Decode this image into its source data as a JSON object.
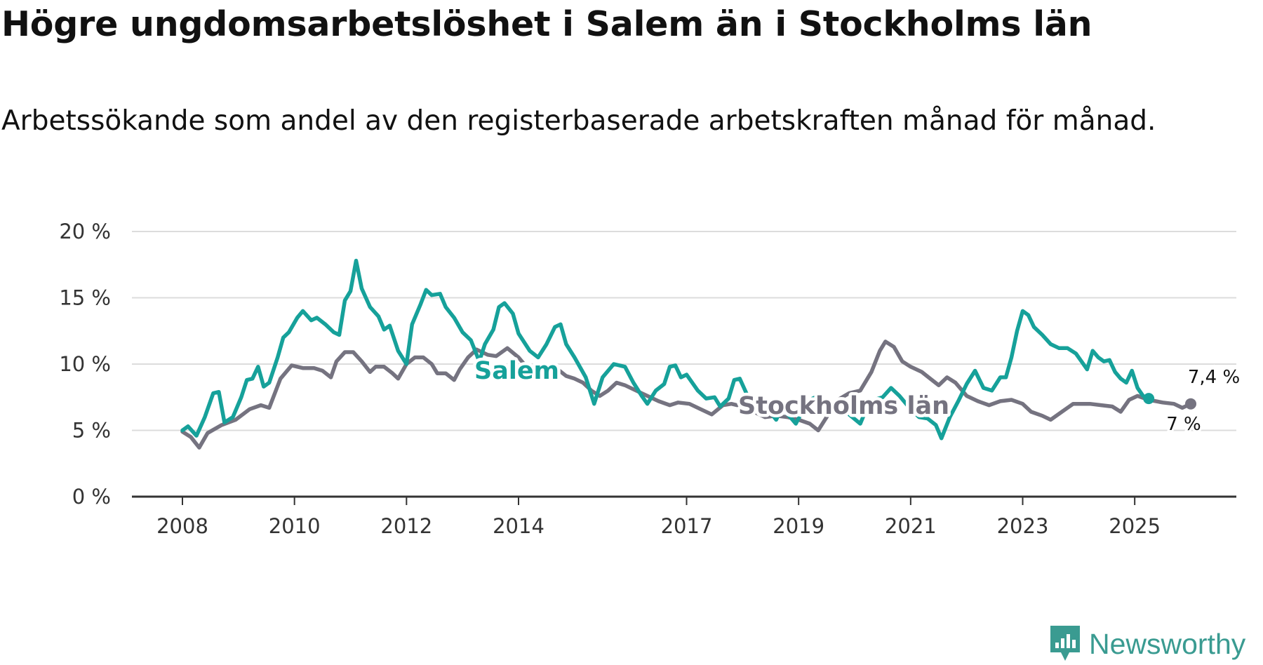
{
  "header": {
    "title": "Högre ungdomsarbetslöshet i Salem än i Stockholms län",
    "subtitle": "Arbetssökande som andel av den registerbaserade arbetskraften månad för månad."
  },
  "brand": {
    "name": "Newsworthy",
    "icon": "newsworthy-logo-icon",
    "color": "#3a9b91"
  },
  "chart_data": {
    "type": "line",
    "title": "Högre ungdomsarbetslöshet i Salem än i Stockholms län",
    "subtitle": "Arbetssökande som andel av den registerbaserade arbetskraften månad för månad.",
    "xlabel": "",
    "ylabel": "",
    "x_range": [
      2008.0,
      2026.0
    ],
    "ylim": [
      0,
      20
    ],
    "y_ticks": [
      {
        "value": 0,
        "label": "0 %"
      },
      {
        "value": 5,
        "label": "5 %"
      },
      {
        "value": 10,
        "label": "10 %"
      },
      {
        "value": 15,
        "label": "15 %"
      },
      {
        "value": 20,
        "label": "20 %"
      }
    ],
    "x_ticks": [
      {
        "value": 2008,
        "label": "2008"
      },
      {
        "value": 2010,
        "label": "2010"
      },
      {
        "value": 2012,
        "label": "2012"
      },
      {
        "value": 2014,
        "label": "2014"
      },
      {
        "value": 2017,
        "label": "2017"
      },
      {
        "value": 2019,
        "label": "2019"
      },
      {
        "value": 2021,
        "label": "2021"
      },
      {
        "value": 2023,
        "label": "2023"
      },
      {
        "value": 2025,
        "label": "2025"
      }
    ],
    "grid": true,
    "series": [
      {
        "name": "Stockholms län",
        "label": "Stockholms län",
        "color": "#757380",
        "end_label": "7 %",
        "points": [
          [
            2008.0,
            4.9
          ],
          [
            2008.15,
            4.5
          ],
          [
            2008.3,
            3.7
          ],
          [
            2008.45,
            4.8
          ],
          [
            2008.7,
            5.4
          ],
          [
            2008.95,
            5.8
          ],
          [
            2009.2,
            6.6
          ],
          [
            2009.4,
            6.9
          ],
          [
            2009.55,
            6.7
          ],
          [
            2009.75,
            8.9
          ],
          [
            2009.95,
            9.9
          ],
          [
            2010.15,
            9.7
          ],
          [
            2010.35,
            9.7
          ],
          [
            2010.5,
            9.5
          ],
          [
            2010.65,
            9.0
          ],
          [
            2010.75,
            10.2
          ],
          [
            2010.9,
            10.9
          ],
          [
            2011.05,
            10.9
          ],
          [
            2011.2,
            10.2
          ],
          [
            2011.35,
            9.4
          ],
          [
            2011.45,
            9.8
          ],
          [
            2011.6,
            9.8
          ],
          [
            2011.75,
            9.3
          ],
          [
            2011.85,
            8.9
          ],
          [
            2012.0,
            10.0
          ],
          [
            2012.15,
            10.5
          ],
          [
            2012.3,
            10.5
          ],
          [
            2012.45,
            10.0
          ],
          [
            2012.55,
            9.3
          ],
          [
            2012.7,
            9.3
          ],
          [
            2012.85,
            8.8
          ],
          [
            2012.95,
            9.6
          ],
          [
            2013.1,
            10.5
          ],
          [
            2013.25,
            11.1
          ],
          [
            2013.45,
            10.7
          ],
          [
            2013.6,
            10.6
          ],
          [
            2013.8,
            11.2
          ],
          [
            2014.0,
            10.5
          ],
          [
            2014.2,
            9.5
          ],
          [
            2014.5,
            9.0
          ],
          [
            2014.7,
            9.6
          ],
          [
            2014.85,
            9.1
          ],
          [
            2015.0,
            8.9
          ],
          [
            2015.15,
            8.6
          ],
          [
            2015.3,
            8.0
          ],
          [
            2015.45,
            7.6
          ],
          [
            2015.6,
            8.0
          ],
          [
            2015.75,
            8.6
          ],
          [
            2015.9,
            8.4
          ],
          [
            2016.1,
            8.0
          ],
          [
            2016.3,
            7.6
          ],
          [
            2016.5,
            7.2
          ],
          [
            2016.7,
            6.9
          ],
          [
            2016.85,
            7.1
          ],
          [
            2017.05,
            7.0
          ],
          [
            2017.25,
            6.6
          ],
          [
            2017.45,
            6.2
          ],
          [
            2017.65,
            6.9
          ],
          [
            2017.8,
            7.0
          ],
          [
            2018.0,
            6.8
          ],
          [
            2018.2,
            6.4
          ],
          [
            2018.4,
            6.0
          ],
          [
            2018.6,
            6.1
          ],
          [
            2018.8,
            6.0
          ],
          [
            2019.0,
            5.8
          ],
          [
            2019.2,
            5.5
          ],
          [
            2019.35,
            5.0
          ],
          [
            2019.5,
            6.0
          ],
          [
            2019.7,
            7.3
          ],
          [
            2019.9,
            7.8
          ],
          [
            2020.1,
            8.0
          ],
          [
            2020.3,
            9.4
          ],
          [
            2020.45,
            11.0
          ],
          [
            2020.55,
            11.7
          ],
          [
            2020.7,
            11.3
          ],
          [
            2020.85,
            10.2
          ],
          [
            2021.0,
            9.8
          ],
          [
            2021.2,
            9.4
          ],
          [
            2021.35,
            8.9
          ],
          [
            2021.5,
            8.4
          ],
          [
            2021.65,
            9.0
          ],
          [
            2021.8,
            8.6
          ],
          [
            2022.0,
            7.6
          ],
          [
            2022.2,
            7.2
          ],
          [
            2022.4,
            6.9
          ],
          [
            2022.6,
            7.2
          ],
          [
            2022.8,
            7.3
          ],
          [
            2023.0,
            7.0
          ],
          [
            2023.15,
            6.4
          ],
          [
            2023.35,
            6.1
          ],
          [
            2023.5,
            5.8
          ],
          [
            2023.7,
            6.4
          ],
          [
            2023.9,
            7.0
          ],
          [
            2024.2,
            7.0
          ],
          [
            2024.4,
            6.9
          ],
          [
            2024.6,
            6.8
          ],
          [
            2024.75,
            6.4
          ],
          [
            2024.9,
            7.3
          ],
          [
            2025.05,
            7.6
          ],
          [
            2025.25,
            7.3
          ],
          [
            2025.5,
            7.1
          ],
          [
            2025.7,
            7.0
          ],
          [
            2025.85,
            6.7
          ],
          [
            2026.0,
            7.0
          ]
        ]
      },
      {
        "name": "Salem",
        "label": "Salem",
        "color": "#16a19a",
        "end_label": "7,4 %",
        "points": [
          [
            2008.0,
            5.0
          ],
          [
            2008.1,
            5.3
          ],
          [
            2008.25,
            4.6
          ],
          [
            2008.4,
            6.0
          ],
          [
            2008.55,
            7.8
          ],
          [
            2008.65,
            7.9
          ],
          [
            2008.75,
            5.6
          ],
          [
            2008.9,
            6.0
          ],
          [
            2009.05,
            7.5
          ],
          [
            2009.15,
            8.8
          ],
          [
            2009.25,
            8.9
          ],
          [
            2009.35,
            9.8
          ],
          [
            2009.45,
            8.3
          ],
          [
            2009.55,
            8.6
          ],
          [
            2009.7,
            10.5
          ],
          [
            2009.8,
            12.0
          ],
          [
            2009.9,
            12.4
          ],
          [
            2010.05,
            13.5
          ],
          [
            2010.15,
            14.0
          ],
          [
            2010.3,
            13.3
          ],
          [
            2010.4,
            13.5
          ],
          [
            2010.55,
            13.0
          ],
          [
            2010.7,
            12.4
          ],
          [
            2010.8,
            12.2
          ],
          [
            2010.9,
            14.8
          ],
          [
            2011.0,
            15.5
          ],
          [
            2011.1,
            17.8
          ],
          [
            2011.2,
            15.7
          ],
          [
            2011.35,
            14.3
          ],
          [
            2011.5,
            13.6
          ],
          [
            2011.6,
            12.6
          ],
          [
            2011.7,
            12.9
          ],
          [
            2011.85,
            11.0
          ],
          [
            2012.0,
            10.0
          ],
          [
            2012.1,
            13.0
          ],
          [
            2012.25,
            14.5
          ],
          [
            2012.35,
            15.6
          ],
          [
            2012.45,
            15.2
          ],
          [
            2012.6,
            15.3
          ],
          [
            2012.7,
            14.3
          ],
          [
            2012.85,
            13.5
          ],
          [
            2013.0,
            12.4
          ],
          [
            2013.15,
            11.8
          ],
          [
            2013.3,
            10.2
          ],
          [
            2013.4,
            11.5
          ],
          [
            2013.55,
            12.6
          ],
          [
            2013.65,
            14.3
          ],
          [
            2013.75,
            14.6
          ],
          [
            2013.9,
            13.8
          ],
          [
            2014.0,
            12.3
          ],
          [
            2014.2,
            11.0
          ],
          [
            2014.35,
            10.5
          ],
          [
            2014.5,
            11.5
          ],
          [
            2014.65,
            12.8
          ],
          [
            2014.75,
            13.0
          ],
          [
            2014.85,
            11.5
          ],
          [
            2015.0,
            10.5
          ],
          [
            2015.2,
            9.0
          ],
          [
            2015.35,
            7.0
          ],
          [
            2015.5,
            9.0
          ],
          [
            2015.7,
            10.0
          ],
          [
            2015.9,
            9.8
          ],
          [
            2016.05,
            8.6
          ],
          [
            2016.2,
            7.6
          ],
          [
            2016.3,
            7.0
          ],
          [
            2016.45,
            8.0
          ],
          [
            2016.6,
            8.5
          ],
          [
            2016.7,
            9.8
          ],
          [
            2016.8,
            9.9
          ],
          [
            2016.9,
            9.0
          ],
          [
            2017.0,
            9.2
          ],
          [
            2017.2,
            8.0
          ],
          [
            2017.35,
            7.4
          ],
          [
            2017.5,
            7.5
          ],
          [
            2017.6,
            6.8
          ],
          [
            2017.75,
            7.4
          ],
          [
            2017.85,
            8.8
          ],
          [
            2017.95,
            8.9
          ],
          [
            2018.1,
            7.5
          ],
          [
            2018.2,
            7.0
          ],
          [
            2018.35,
            6.5
          ],
          [
            2018.45,
            6.6
          ],
          [
            2018.6,
            5.8
          ],
          [
            2018.7,
            6.7
          ],
          [
            2018.85,
            6.0
          ],
          [
            2018.95,
            5.5
          ],
          [
            2019.1,
            6.7
          ],
          [
            2019.25,
            7.4
          ],
          [
            2019.35,
            7.6
          ],
          [
            2019.5,
            6.8
          ],
          [
            2019.6,
            7.0
          ],
          [
            2019.75,
            6.6
          ],
          [
            2019.9,
            6.2
          ],
          [
            2020.1,
            5.5
          ],
          [
            2020.2,
            6.5
          ],
          [
            2020.35,
            7.3
          ],
          [
            2020.5,
            7.5
          ],
          [
            2020.65,
            8.2
          ],
          [
            2020.8,
            7.6
          ],
          [
            2021.0,
            6.6
          ],
          [
            2021.15,
            6.0
          ],
          [
            2021.3,
            5.9
          ],
          [
            2021.45,
            5.4
          ],
          [
            2021.55,
            4.4
          ],
          [
            2021.7,
            6.0
          ],
          [
            2021.85,
            7.2
          ],
          [
            2022.0,
            8.5
          ],
          [
            2022.15,
            9.5
          ],
          [
            2022.3,
            8.2
          ],
          [
            2022.45,
            8.0
          ],
          [
            2022.6,
            9.0
          ],
          [
            2022.7,
            9.0
          ],
          [
            2022.8,
            10.5
          ],
          [
            2022.9,
            12.5
          ],
          [
            2023.0,
            14.0
          ],
          [
            2023.1,
            13.7
          ],
          [
            2023.2,
            12.8
          ],
          [
            2023.35,
            12.2
          ],
          [
            2023.5,
            11.5
          ],
          [
            2023.65,
            11.2
          ],
          [
            2023.8,
            11.2
          ],
          [
            2023.95,
            10.8
          ],
          [
            2024.05,
            10.2
          ],
          [
            2024.15,
            9.6
          ],
          [
            2024.25,
            11.0
          ],
          [
            2024.35,
            10.5
          ],
          [
            2024.45,
            10.2
          ],
          [
            2024.55,
            10.3
          ],
          [
            2024.65,
            9.4
          ],
          [
            2024.75,
            8.9
          ],
          [
            2024.85,
            8.6
          ],
          [
            2024.95,
            9.5
          ],
          [
            2025.05,
            8.2
          ],
          [
            2025.15,
            7.6
          ],
          [
            2025.25,
            7.4
          ]
        ]
      }
    ]
  }
}
